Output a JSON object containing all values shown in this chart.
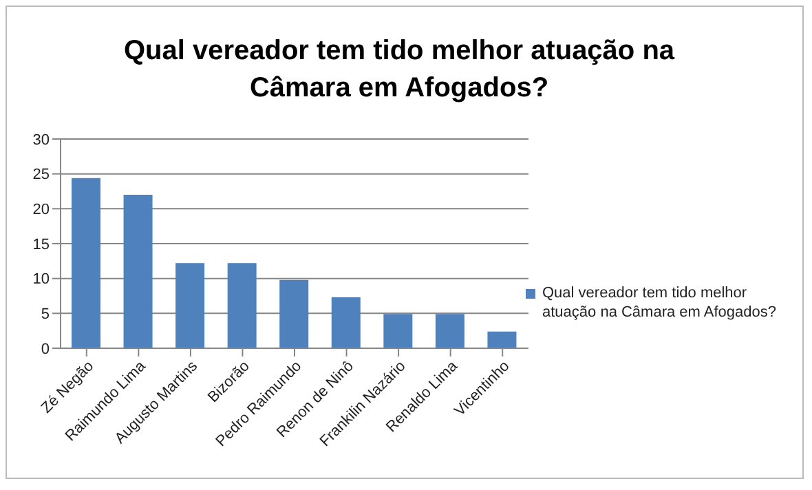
{
  "chart_data": {
    "type": "bar",
    "title": "Qual vereador tem tido melhor atuação na Câmara em Afogados?",
    "categories": [
      "Zé Negão",
      "Raimundo Lima",
      "Augusto Martins",
      "Bizorão",
      "Pedro Raimundo",
      "Renon de Ninô",
      "Frankilin Nazário",
      "Renaldo Lima",
      "Vicentinho"
    ],
    "series": [
      {
        "name": "Qual vereador tem tido melhor atuação na Câmara em Afogados?",
        "color": "#4f81bd",
        "values": [
          24.4,
          22.0,
          12.2,
          12.2,
          9.8,
          7.3,
          4.9,
          4.9,
          2.4
        ]
      }
    ],
    "ylim": [
      0,
      30
    ],
    "yticks": [
      0,
      5,
      10,
      15,
      20,
      25,
      30
    ],
    "grid": "y",
    "legend": "right"
  }
}
